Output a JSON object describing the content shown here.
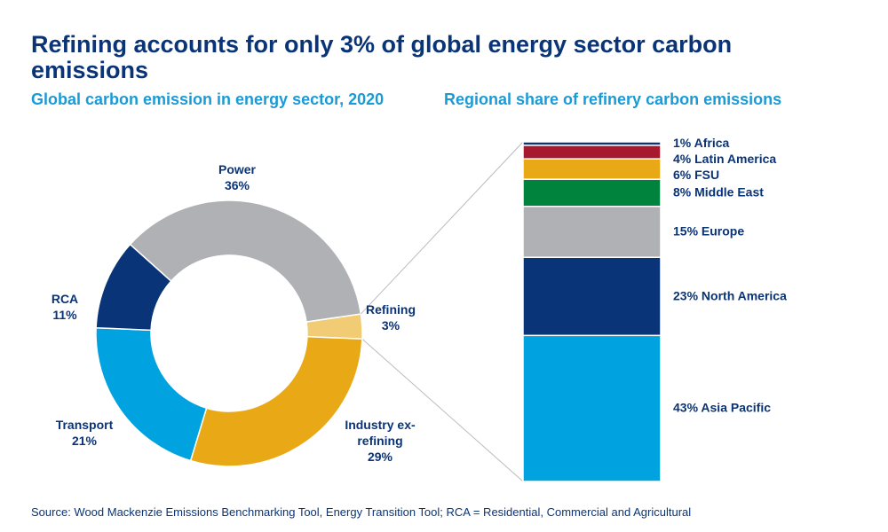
{
  "title": "Refining accounts for only 3% of global energy sector carbon emissions",
  "source": "Source: Wood Mackenzie Emissions Benchmarking Tool, Energy Transition Tool; RCA = Residential, Commercial and Agricultural",
  "chart_data": [
    {
      "type": "donut",
      "subtitle": "Global carbon emission in energy sector, 2020",
      "categories": [
        "Power",
        "Refining",
        "Industry ex-refining",
        "Transport",
        "RCA"
      ],
      "values": [
        36,
        3,
        29,
        21,
        11
      ],
      "value_labels": [
        "36%",
        "3%",
        "29%",
        "21%",
        "11%"
      ],
      "colors": [
        "#afb1b4",
        "#f2cc74",
        "#e9a917",
        "#00a3e0",
        "#0a3478"
      ]
    },
    {
      "type": "stacked-bar",
      "subtitle": "Regional share of refinery carbon emissions",
      "categories": [
        "Asia Pacific",
        "North America",
        "Europe",
        "Middle East",
        "FSU",
        "Latin America",
        "Africa"
      ],
      "values": [
        43,
        23,
        15,
        8,
        6,
        4,
        1
      ],
      "value_labels": [
        "43%",
        "23%",
        "15%",
        "8%",
        "6%",
        "4%",
        "1%"
      ],
      "colors": [
        "#00a3e0",
        "#0a3478",
        "#afb1b4",
        "#00843d",
        "#e9a917",
        "#a6192e",
        "#0a3478"
      ]
    }
  ]
}
